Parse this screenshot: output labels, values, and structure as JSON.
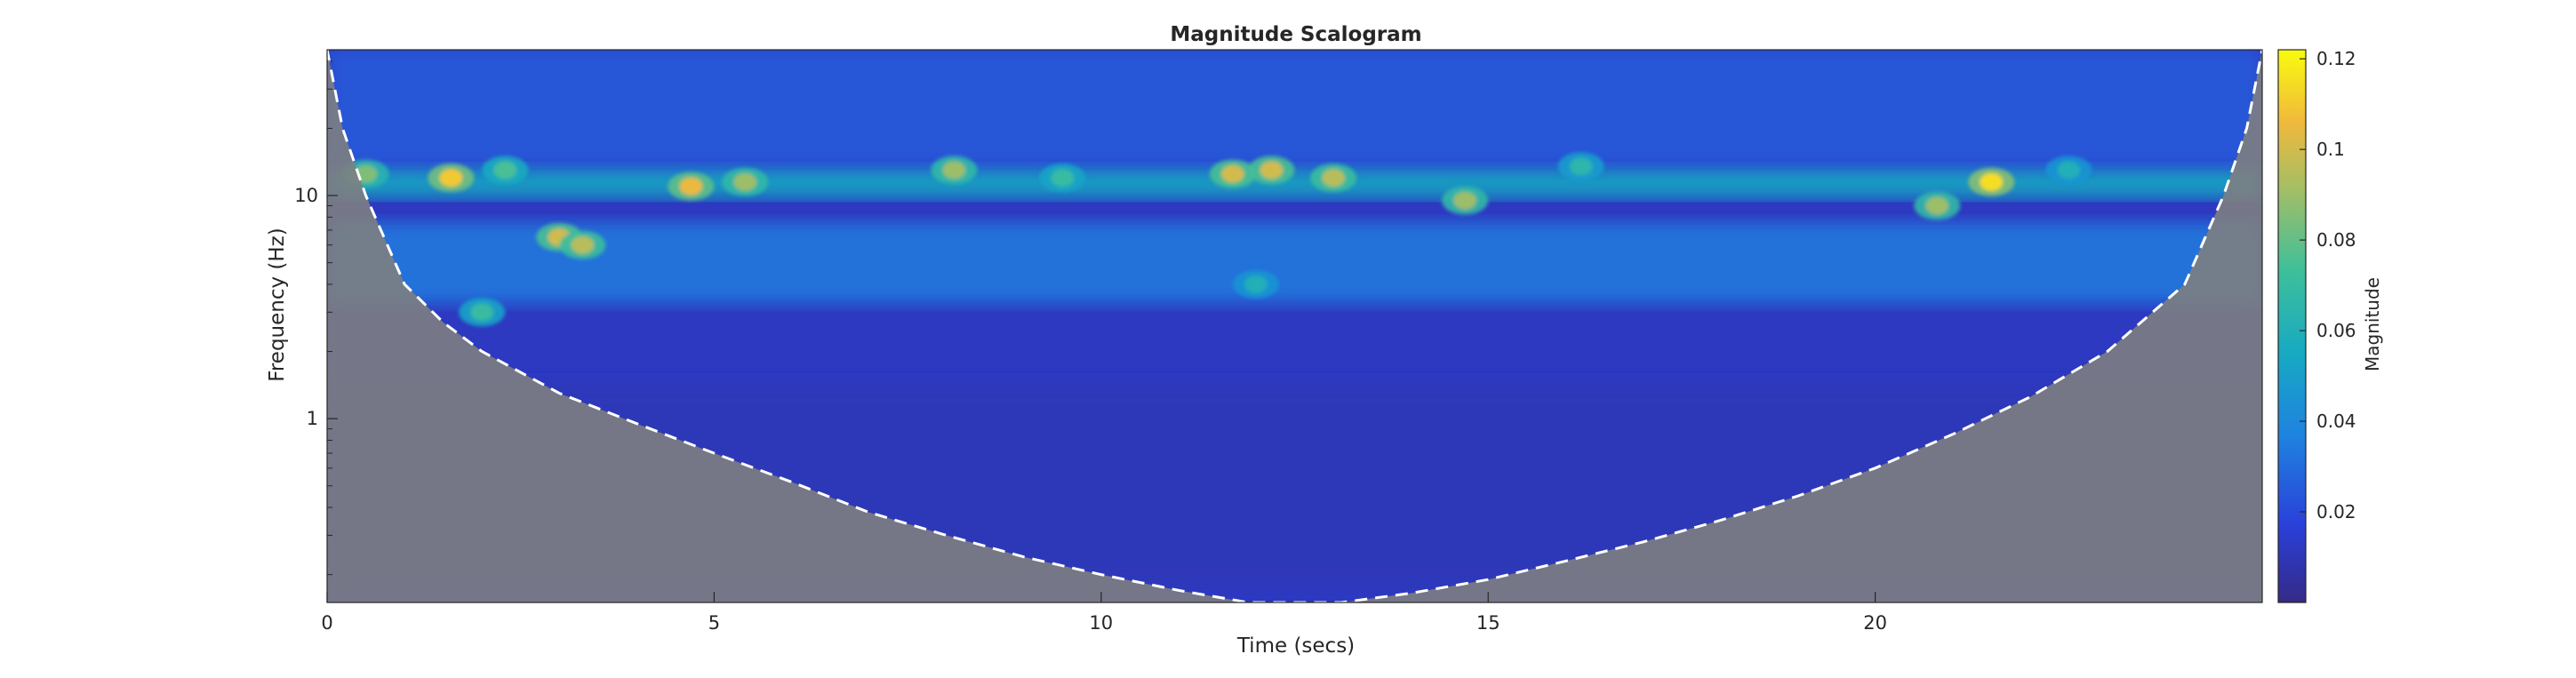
{
  "chart_data": {
    "type": "heatmap",
    "title": "Magnitude Scalogram",
    "xlabel": "Time (secs)",
    "ylabel": "Frequency (Hz)",
    "xlim": [
      0,
      25
    ],
    "ylim": [
      0.15,
      45
    ],
    "y_scale": "log",
    "x_ticks": [
      0,
      5,
      10,
      15,
      20
    ],
    "x_tick_labels": [
      "0",
      "5",
      "10",
      "15",
      "20"
    ],
    "y_ticks": [
      1,
      10
    ],
    "y_tick_labels": [
      "1",
      "10"
    ],
    "colorbar": {
      "label": "Magnitude",
      "colormap": "parula",
      "range": [
        0,
        0.122
      ],
      "ticks": [
        0.02,
        0.04,
        0.06,
        0.08,
        0.1,
        0.12
      ],
      "tick_labels": [
        "0.02",
        "0.04",
        "0.06",
        "0.08",
        "0.1",
        "0.12"
      ],
      "location": "right"
    },
    "cone_of_influence": {
      "style": "dashed",
      "color": "#ffffff",
      "shade_color": "#7f7f7f",
      "points": [
        [
          0,
          45
        ],
        [
          0.2,
          20
        ],
        [
          0.5,
          10
        ],
        [
          1,
          4
        ],
        [
          1.5,
          2.7
        ],
        [
          2,
          2.0
        ],
        [
          3,
          1.3
        ],
        [
          4,
          0.95
        ],
        [
          5,
          0.7
        ],
        [
          6,
          0.52
        ],
        [
          7,
          0.38
        ],
        [
          8,
          0.3
        ],
        [
          9,
          0.24
        ],
        [
          10,
          0.2
        ],
        [
          11,
          0.17
        ],
        [
          11.9,
          0.15
        ],
        [
          13.1,
          0.15
        ],
        [
          14,
          0.165
        ],
        [
          15,
          0.19
        ],
        [
          16,
          0.23
        ],
        [
          17,
          0.28
        ],
        [
          18,
          0.35
        ],
        [
          19,
          0.45
        ],
        [
          20,
          0.6
        ],
        [
          21,
          0.85
        ],
        [
          22,
          1.25
        ],
        [
          23,
          2.0
        ],
        [
          24,
          4.0
        ],
        [
          24.5,
          10
        ],
        [
          24.8,
          20
        ],
        [
          25,
          45
        ]
      ]
    },
    "hotspots": [
      {
        "t": 0.5,
        "f": 12.5,
        "mag": 0.085
      },
      {
        "t": 1.6,
        "f": 12.0,
        "mag": 0.11
      },
      {
        "t": 2.3,
        "f": 13.0,
        "mag": 0.075
      },
      {
        "t": 3.0,
        "f": 6.5,
        "mag": 0.1
      },
      {
        "t": 3.3,
        "f": 6.0,
        "mag": 0.095
      },
      {
        "t": 4.7,
        "f": 11.0,
        "mag": 0.105
      },
      {
        "t": 5.4,
        "f": 11.5,
        "mag": 0.09
      },
      {
        "t": 8.1,
        "f": 13.0,
        "mag": 0.09
      },
      {
        "t": 9.5,
        "f": 12.0,
        "mag": 0.07
      },
      {
        "t": 11.7,
        "f": 12.5,
        "mag": 0.1
      },
      {
        "t": 12.2,
        "f": 13.0,
        "mag": 0.1
      },
      {
        "t": 13.0,
        "f": 12.0,
        "mag": 0.095
      },
      {
        "t": 14.7,
        "f": 9.5,
        "mag": 0.09
      },
      {
        "t": 16.2,
        "f": 13.5,
        "mag": 0.065
      },
      {
        "t": 20.8,
        "f": 9.0,
        "mag": 0.09
      },
      {
        "t": 21.5,
        "f": 11.5,
        "mag": 0.115
      },
      {
        "t": 22.5,
        "f": 13.0,
        "mag": 0.06
      },
      {
        "t": 12.0,
        "f": 4.0,
        "mag": 0.06
      },
      {
        "t": 2.0,
        "f": 3.0,
        "mag": 0.07
      }
    ],
    "bands": [
      {
        "f": 11.5,
        "mag": 0.055,
        "sigma_octaves": 0.25
      },
      {
        "f": 5.0,
        "mag": 0.035,
        "sigma_octaves": 0.6
      },
      {
        "f": 25.0,
        "mag": 0.025,
        "sigma_octaves": 0.9
      },
      {
        "f": 0.5,
        "mag": 0.01,
        "sigma_octaves": 1.5
      }
    ]
  }
}
